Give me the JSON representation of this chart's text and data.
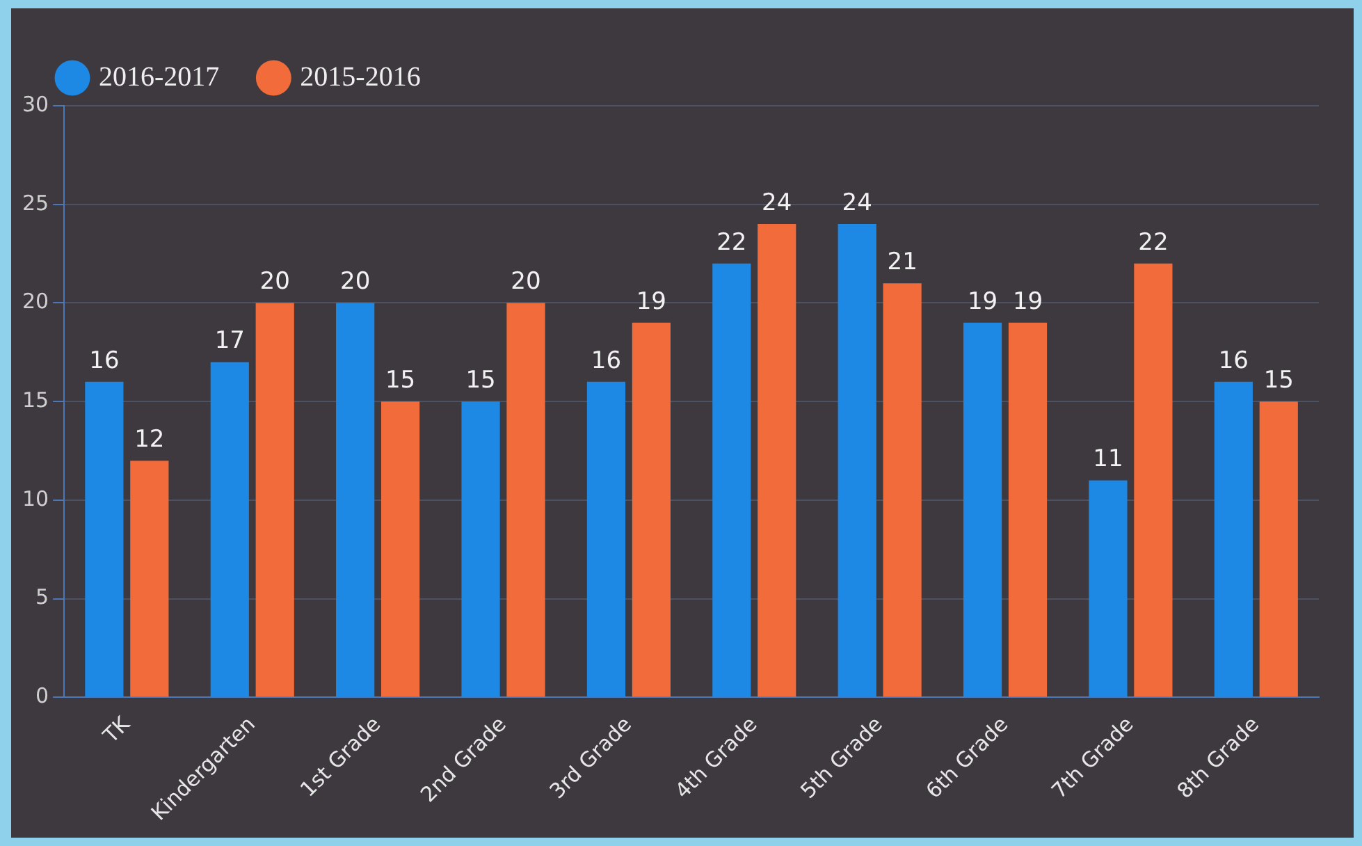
{
  "chart_data": {
    "type": "bar",
    "categories": [
      "TK",
      "Kindergarten",
      "1st Grade",
      "2nd Grade",
      "3rd Grade",
      "4th Grade",
      "5th Grade",
      "6th Grade",
      "7th Grade",
      "8th Grade"
    ],
    "series": [
      {
        "name": "2016-2017",
        "color": "#1e88e5",
        "values": [
          16,
          17,
          20,
          15,
          16,
          22,
          24,
          19,
          11,
          16
        ]
      },
      {
        "name": "2015-2016",
        "color": "#f26b3a",
        "values": [
          12,
          20,
          15,
          20,
          19,
          24,
          21,
          19,
          22,
          15
        ]
      }
    ],
    "ylim": [
      0,
      30
    ],
    "yticks": [
      0,
      5,
      10,
      15,
      20,
      25,
      30
    ],
    "grid": "y",
    "legend": "top left",
    "data_labels": true
  }
}
